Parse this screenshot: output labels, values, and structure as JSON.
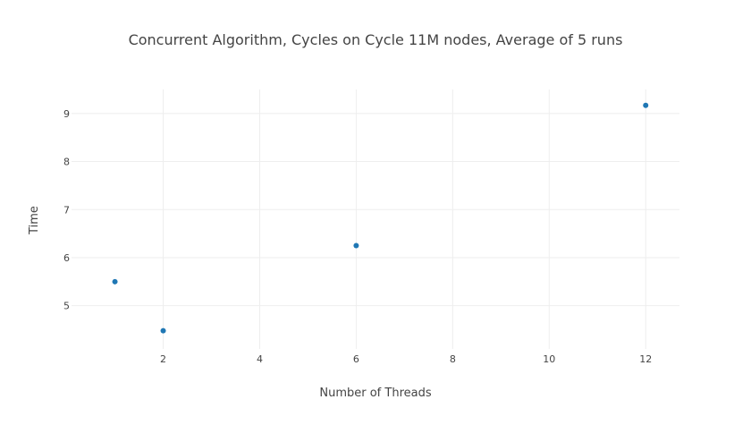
{
  "chart_data": {
    "type": "scatter",
    "title": "Concurrent Algorithm, Cycles on Cycle 11M nodes, Average of 5 runs",
    "xlabel": "Number of Threads",
    "ylabel": "Time",
    "xlim": [
      0.1,
      12.7
    ],
    "ylim": [
      4.1,
      9.5
    ],
    "xticks": [
      2,
      4,
      6,
      8,
      10,
      12
    ],
    "yticks": [
      5,
      6,
      7,
      8,
      9
    ],
    "grid": true,
    "marker_color": "#1f77b4",
    "series": [
      {
        "x": [
          1,
          2,
          6,
          12
        ],
        "y": [
          5.5,
          4.48,
          6.25,
          9.17
        ]
      }
    ]
  }
}
